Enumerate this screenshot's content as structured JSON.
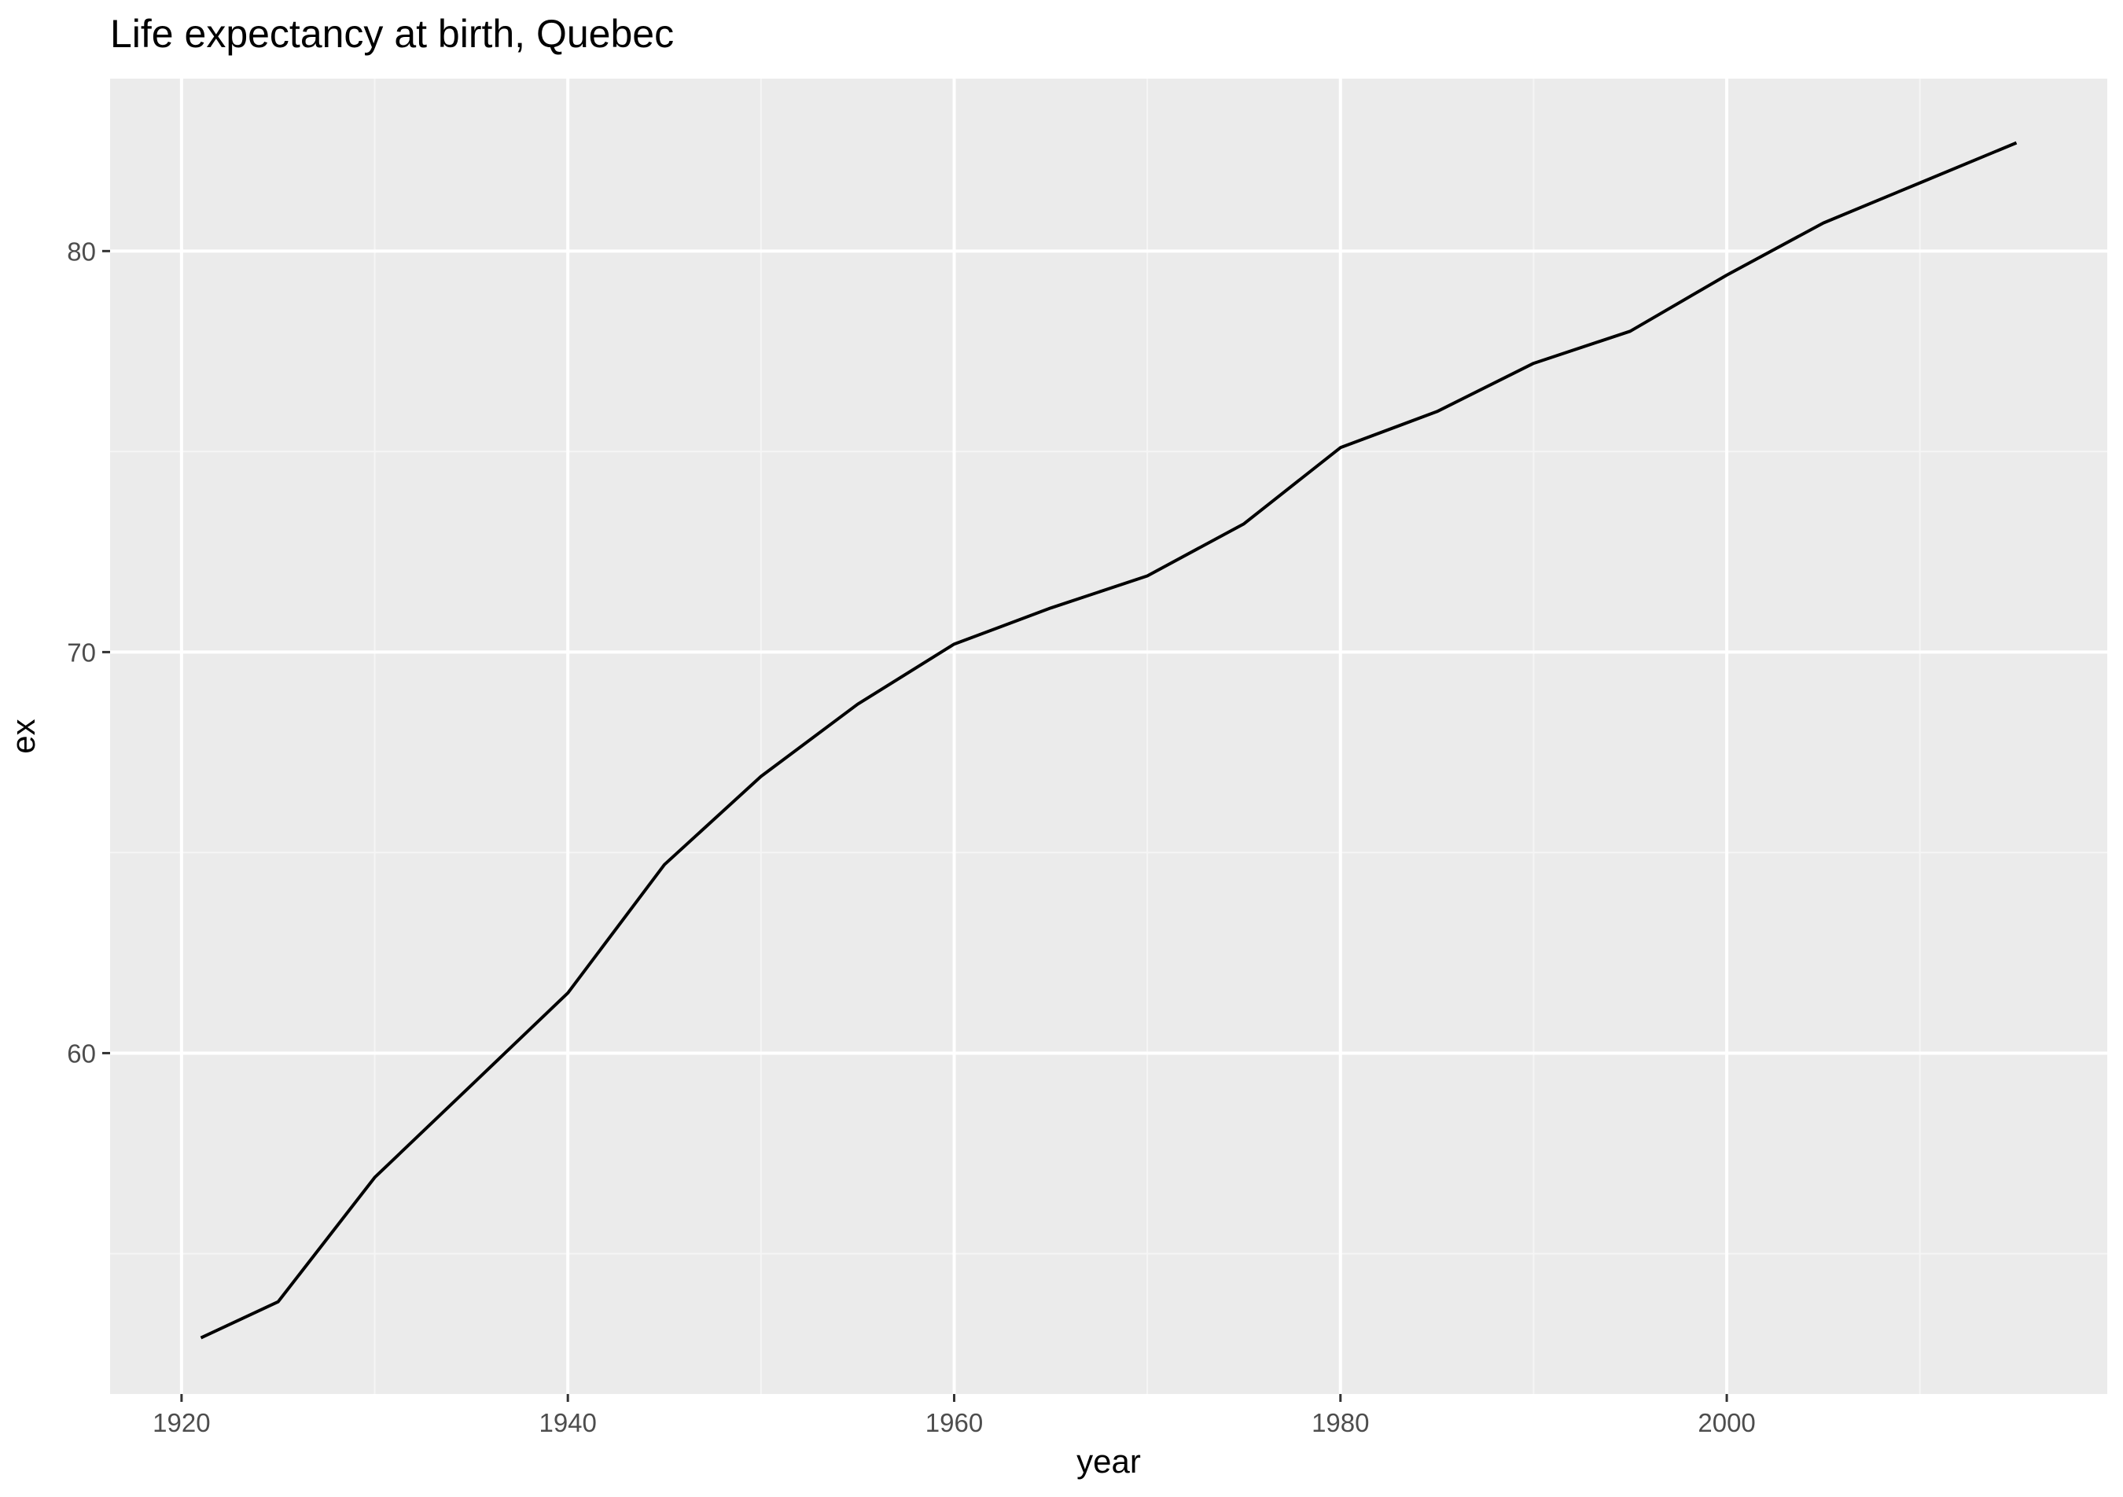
{
  "chart_data": {
    "type": "line",
    "title": "Life expectancy at birth, Quebec",
    "xlabel": "year",
    "ylabel": "ex",
    "xlim": [
      1916.3,
      2019.7
    ],
    "ylim": [
      51.5,
      84.3
    ],
    "x_ticks": [
      1920,
      1940,
      1960,
      1980,
      2000
    ],
    "x_tick_labels": [
      "1920",
      "1940",
      "1960",
      "1980",
      "2000"
    ],
    "y_ticks": [
      60,
      70,
      80
    ],
    "y_tick_labels": [
      "60",
      "70",
      "80"
    ],
    "x_minor_ticks": [
      1930,
      1950,
      1970,
      1990,
      2010
    ],
    "y_minor_ticks": [
      55,
      65,
      75
    ],
    "grid": true,
    "legend": "none",
    "series": [
      {
        "x": [
          1921,
          1925,
          1930,
          1935,
          1940,
          1945,
          1950,
          1955,
          1960,
          1965,
          1970,
          1975,
          1980,
          1985,
          1990,
          1995,
          2000,
          2005,
          2010,
          2015
        ],
        "values": [
          52.9,
          53.8,
          56.9,
          59.2,
          61.5,
          64.7,
          66.9,
          68.7,
          70.2,
          71.1,
          71.9,
          73.2,
          75.1,
          76.0,
          77.2,
          78.0,
          79.4,
          80.7,
          81.7,
          82.7
        ]
      }
    ],
    "colors": {
      "panel_background": "#ebebeb",
      "grid_major": "#ffffff",
      "grid_minor": "#f5f5f5",
      "line": "#000000",
      "tick": "#333333",
      "tick_label": "#4d4d4d"
    }
  }
}
